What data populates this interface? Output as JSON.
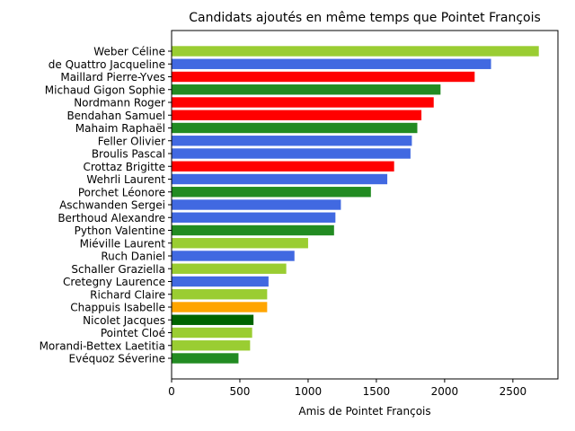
{
  "chart_data": {
    "type": "bar",
    "orientation": "horizontal",
    "title": "Candidats ajoutés en même temps que Pointet François",
    "xlabel": "Amis de Pointet François",
    "ylabel": "",
    "xlim": [
      0,
      2830
    ],
    "xticks": [
      0,
      500,
      1000,
      1500,
      2000,
      2500
    ],
    "xtick_labels": [
      "0",
      "500",
      "1000",
      "1500",
      "2000",
      "2500"
    ],
    "grid": false,
    "categories": [
      "Weber Céline",
      "de Quattro Jacqueline",
      "Maillard Pierre-Yves",
      "Michaud Gigon Sophie",
      "Nordmann Roger",
      "Bendahan Samuel",
      "Mahaim Raphaël",
      "Feller Olivier",
      "Broulis Pascal",
      "Crottaz Brigitte",
      "Wehrli Laurent",
      "Porchet Léonore",
      "Aschwanden Sergei",
      "Berthoud Alexandre",
      "Python Valentine",
      "Miéville Laurent",
      "Ruch Daniel",
      "Schaller Graziella",
      "Cretegny Laurence",
      "Richard Claire",
      "Chappuis Isabelle",
      "Nicolet Jacques",
      "Pointet Cloé",
      "Morandi-Bettex Laetitia",
      "Evéquoz Séverine"
    ],
    "values": [
      2690,
      2340,
      2220,
      1970,
      1920,
      1830,
      1800,
      1760,
      1750,
      1630,
      1580,
      1460,
      1240,
      1200,
      1190,
      1000,
      900,
      840,
      710,
      700,
      700,
      600,
      590,
      575,
      490
    ],
    "colors": [
      "#9acd32",
      "#4169e1",
      "#ff0000",
      "#228b22",
      "#ff0000",
      "#ff0000",
      "#228b22",
      "#4169e1",
      "#4169e1",
      "#ff0000",
      "#4169e1",
      "#228b22",
      "#4169e1",
      "#4169e1",
      "#228b22",
      "#9acd32",
      "#4169e1",
      "#9acd32",
      "#4169e1",
      "#9acd32",
      "#ffa500",
      "#006400",
      "#9acd32",
      "#9acd32",
      "#228b22"
    ]
  }
}
